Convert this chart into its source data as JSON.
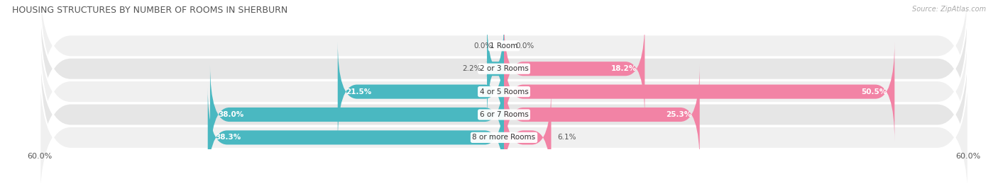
{
  "title": "HOUSING STRUCTURES BY NUMBER OF ROOMS IN SHERBURN",
  "source": "Source: ZipAtlas.com",
  "categories": [
    "1 Room",
    "2 or 3 Rooms",
    "4 or 5 Rooms",
    "6 or 7 Rooms",
    "8 or more Rooms"
  ],
  "owner_values": [
    0.0,
    2.2,
    21.5,
    38.0,
    38.3
  ],
  "renter_values": [
    0.0,
    18.2,
    50.5,
    25.3,
    6.1
  ],
  "owner_color": "#4ab8c1",
  "renter_color": "#f283a5",
  "row_bg_color_odd": "#f0f0f0",
  "row_bg_color_even": "#e6e6e6",
  "axis_max": 60.0,
  "label_fontsize": 7.5,
  "title_fontsize": 9,
  "category_fontsize": 7.5,
  "legend_fontsize": 8,
  "bar_height": 0.62,
  "background_color": "#ffffff",
  "text_color": "#555555",
  "source_color": "#aaaaaa"
}
